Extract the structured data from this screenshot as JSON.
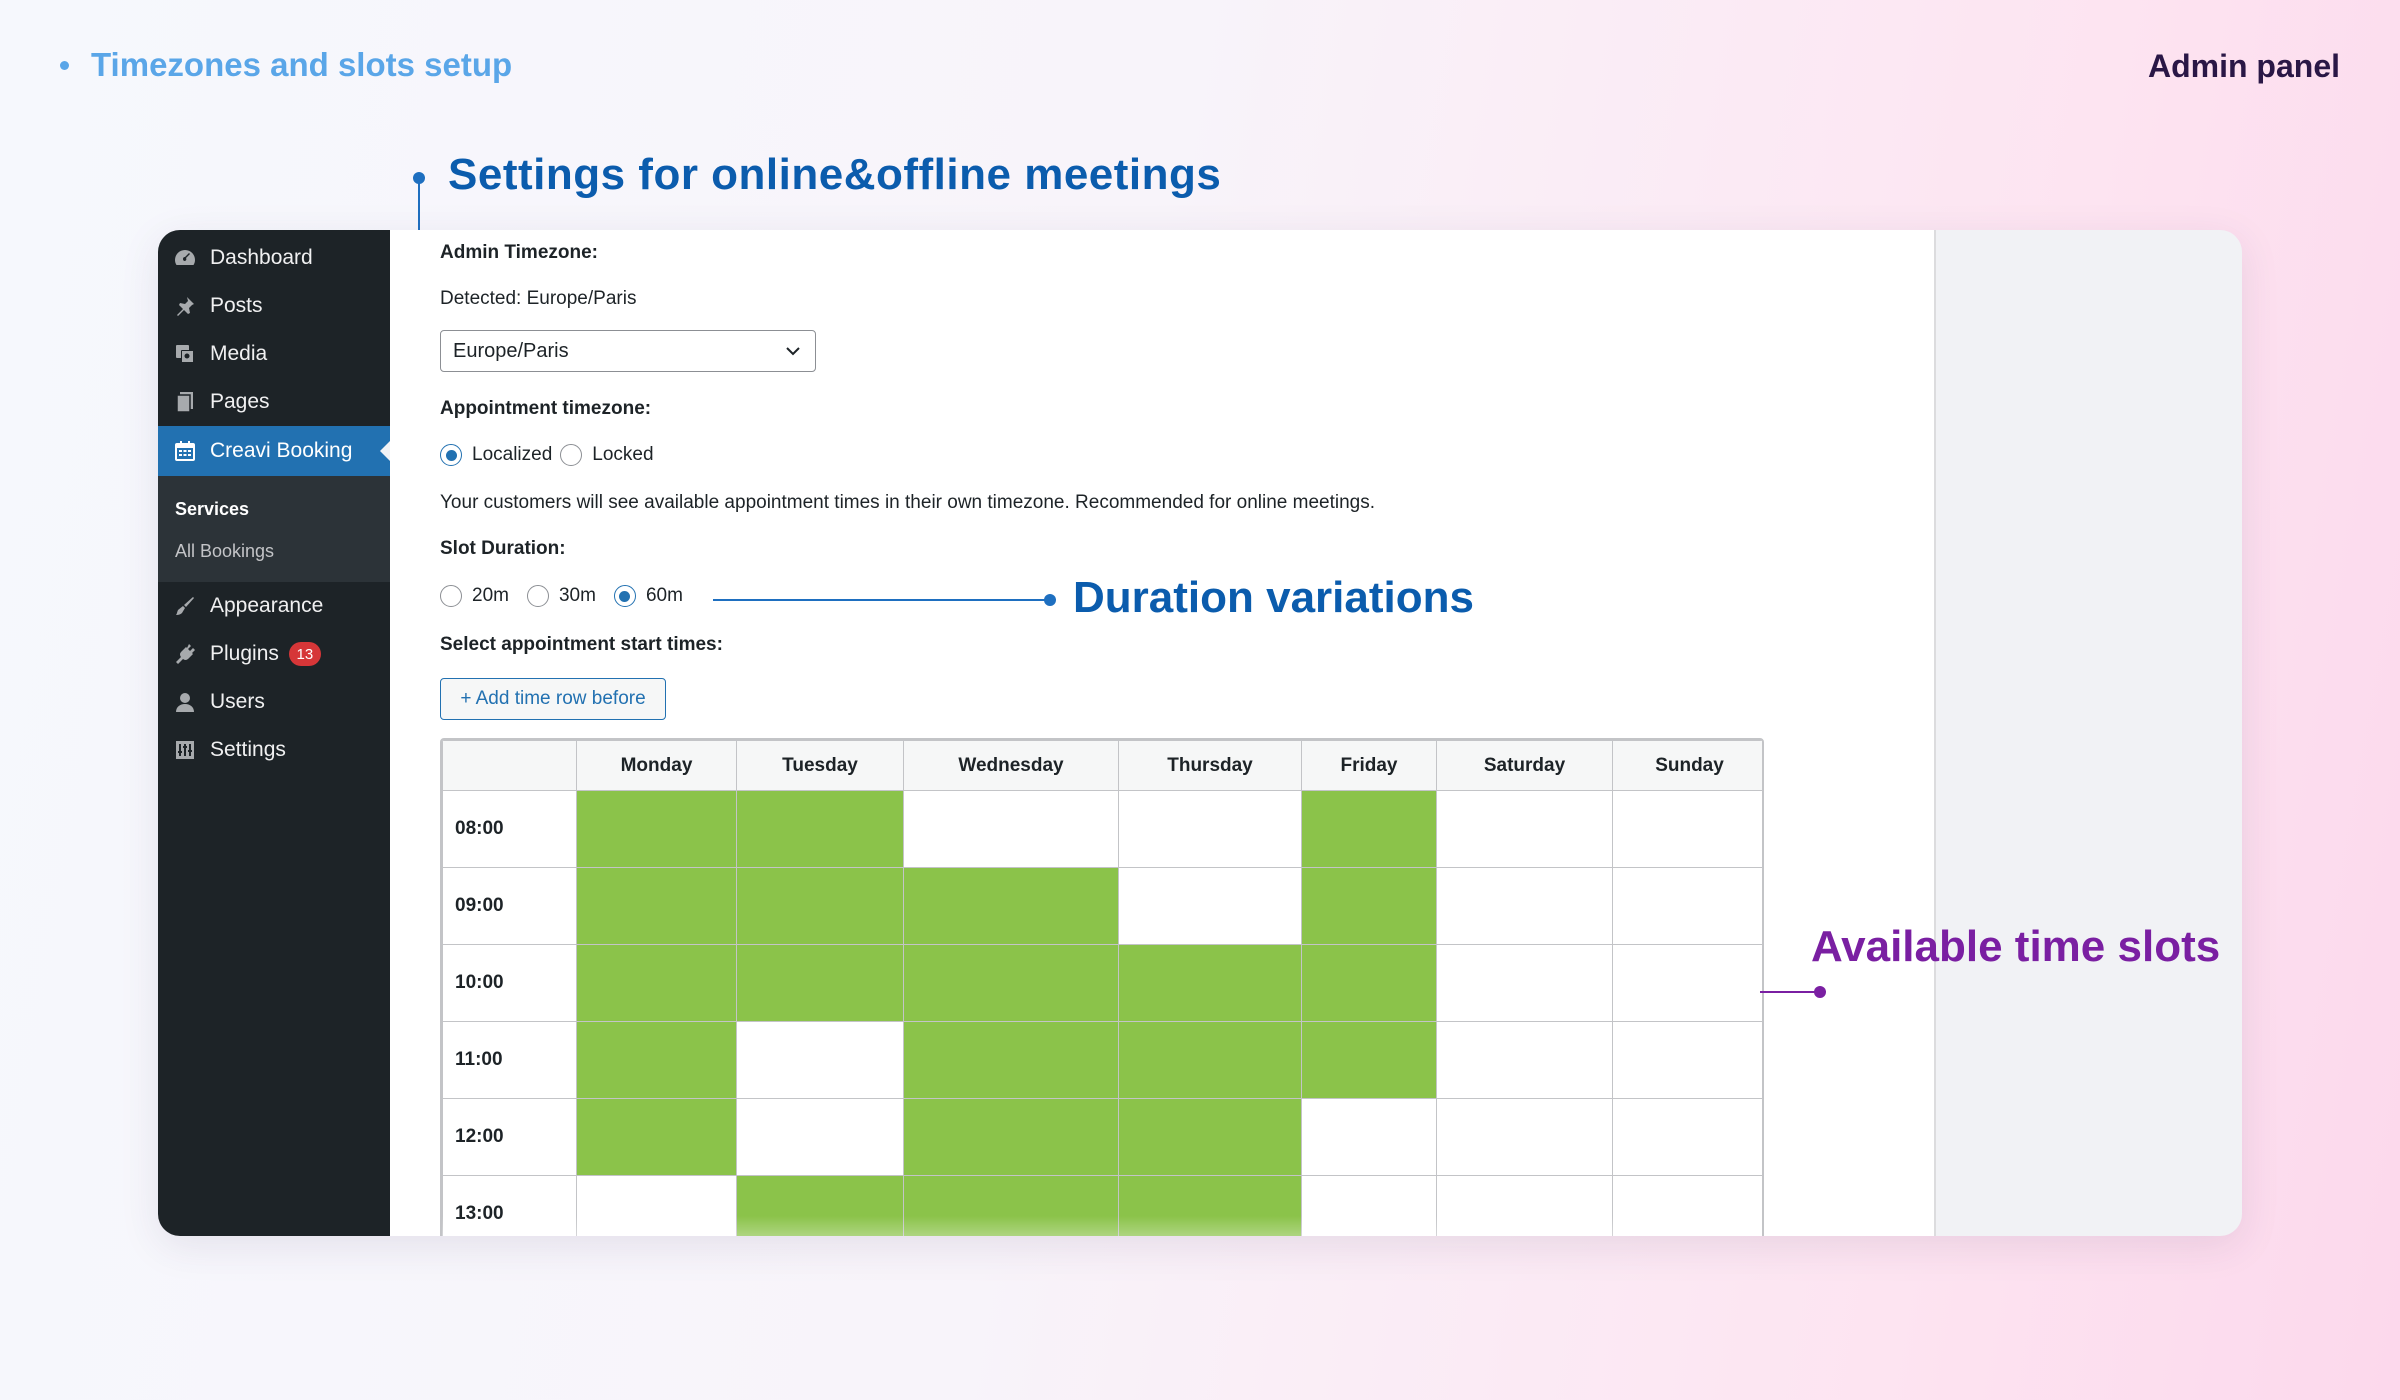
{
  "page": {
    "section_title": "Timezones and slots setup",
    "panel_label": "Admin panel"
  },
  "callouts": {
    "settings": "Settings for online&offline meetings",
    "duration": "Duration variations",
    "available": "Available time slots"
  },
  "sidebar": {
    "items": [
      {
        "label": "Dashboard",
        "icon": "dashboard-icon"
      },
      {
        "label": "Posts",
        "icon": "pin-icon"
      },
      {
        "label": "Media",
        "icon": "media-icon"
      },
      {
        "label": "Pages",
        "icon": "pages-icon"
      },
      {
        "label": "Creavi Booking",
        "icon": "calendar-icon"
      },
      {
        "label": "Appearance",
        "icon": "brush-icon"
      },
      {
        "label": "Plugins",
        "icon": "plug-icon",
        "badge": "13"
      },
      {
        "label": "Users",
        "icon": "user-icon"
      },
      {
        "label": "Settings",
        "icon": "settings-icon"
      }
    ],
    "submenu": [
      "Services",
      "All Bookings"
    ]
  },
  "form": {
    "admin_tz_label": "Admin Timezone:",
    "detected_label": "Detected:",
    "detected_value": "Europe/Paris",
    "tz_select_value": "Europe/Paris",
    "appt_tz_label": "Appointment timezone:",
    "appt_tz_options": [
      "Localized",
      "Locked"
    ],
    "appt_tz_selected": "Localized",
    "appt_tz_help": "Your customers will see available appointment times in their own timezone. Recommended for online meetings.",
    "slot_label": "Slot Duration:",
    "slot_options": [
      "20m",
      "30m",
      "60m"
    ],
    "slot_selected": "60m",
    "start_times_label": "Select appointment start times:",
    "add_row_button": "+ Add time row before"
  },
  "schedule": {
    "days": [
      "Monday",
      "Tuesday",
      "Wednesday",
      "Thursday",
      "Friday",
      "Saturday",
      "Sunday"
    ],
    "rows": [
      {
        "time": "08:00",
        "slots": [
          true,
          true,
          false,
          false,
          true,
          false,
          false
        ]
      },
      {
        "time": "09:00",
        "slots": [
          true,
          true,
          true,
          false,
          true,
          false,
          false
        ]
      },
      {
        "time": "10:00",
        "slots": [
          true,
          true,
          true,
          true,
          true,
          false,
          false
        ]
      },
      {
        "time": "11:00",
        "slots": [
          true,
          false,
          true,
          true,
          true,
          false,
          false
        ]
      },
      {
        "time": "12:00",
        "slots": [
          true,
          false,
          true,
          true,
          false,
          false,
          false
        ]
      },
      {
        "time": "13:00",
        "slots": [
          false,
          true,
          true,
          true,
          false,
          false,
          false
        ]
      }
    ],
    "selected_color": "#8bc34a"
  },
  "colors": {
    "sidebar_bg": "#1d2327",
    "accent": "#2271b1",
    "callout_blue": "#0b5cad",
    "callout_purple": "#7a1fa2"
  }
}
